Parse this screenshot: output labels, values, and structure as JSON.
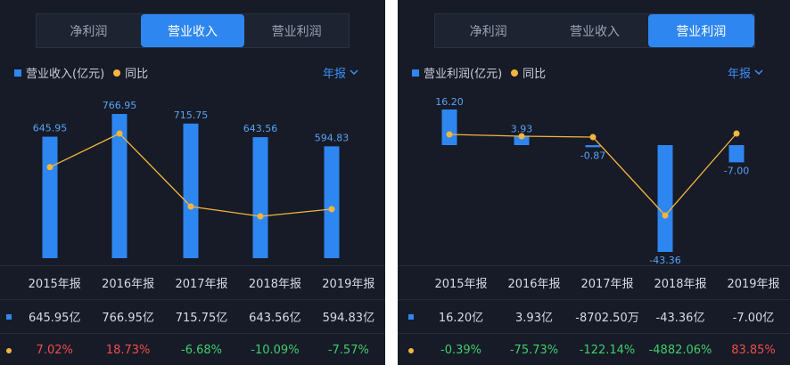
{
  "panels": [
    {
      "tabs": [
        "净利润",
        "营业收入",
        "营业利润"
      ],
      "active_tab": 1,
      "legend_bar": "营业收入(亿元)",
      "legend_line": "同比",
      "period": "年报",
      "colors": {
        "bar": "#2e86f0",
        "line": "#f5b53d",
        "positive": "#f24b4b",
        "negative": "#3fce6b"
      },
      "years": [
        "2015年报",
        "2016年报",
        "2017年报",
        "2018年报",
        "2019年报"
      ],
      "values_text": [
        "645.95亿",
        "766.95亿",
        "715.75亿",
        "643.56亿",
        "594.83亿"
      ],
      "yoy_text": [
        "7.02%",
        "18.73%",
        "-6.68%",
        "-10.09%",
        "-7.57%"
      ],
      "chart_data": {
        "type": "bar",
        "categories": [
          "2015",
          "2016",
          "2017",
          "2018",
          "2019"
        ],
        "series": [
          {
            "name": "营业收入(亿元)",
            "values": [
              645.95,
              766.95,
              715.75,
              643.56,
              594.83
            ]
          },
          {
            "name": "同比",
            "values": [
              7.02,
              18.73,
              -6.68,
              -10.09,
              -7.57
            ]
          }
        ],
        "bar_labels": [
          "645.95",
          "766.95",
          "715.75",
          "643.56",
          "594.83"
        ]
      }
    },
    {
      "tabs": [
        "净利润",
        "营业收入",
        "营业利润"
      ],
      "active_tab": 2,
      "legend_bar": "营业利润(亿元)",
      "legend_line": "同比",
      "period": "年报",
      "colors": {
        "bar": "#2e86f0",
        "line": "#f5b53d",
        "positive": "#f24b4b",
        "negative": "#3fce6b"
      },
      "years": [
        "2015年报",
        "2016年报",
        "2017年报",
        "2018年报",
        "2019年报"
      ],
      "values_text": [
        "16.20亿",
        "3.93亿",
        "-8702.50万",
        "-43.36亿",
        "-7.00亿"
      ],
      "yoy_text": [
        "-0.39%",
        "-75.73%",
        "-122.14%",
        "-4882.06%",
        "83.85%"
      ],
      "chart_data": {
        "type": "bar",
        "categories": [
          "2015",
          "2016",
          "2017",
          "2018",
          "2019"
        ],
        "series": [
          {
            "name": "营业利润(亿元)",
            "values": [
              16.2,
              3.93,
              -0.87,
              -43.36,
              -7.0
            ]
          },
          {
            "name": "同比",
            "values": [
              -0.39,
              -75.73,
              -122.14,
              -4882.06,
              83.85
            ]
          }
        ],
        "bar_labels": [
          "16.20",
          "3.93",
          "-0.87",
          "-43.36",
          "-7.00"
        ]
      }
    }
  ]
}
